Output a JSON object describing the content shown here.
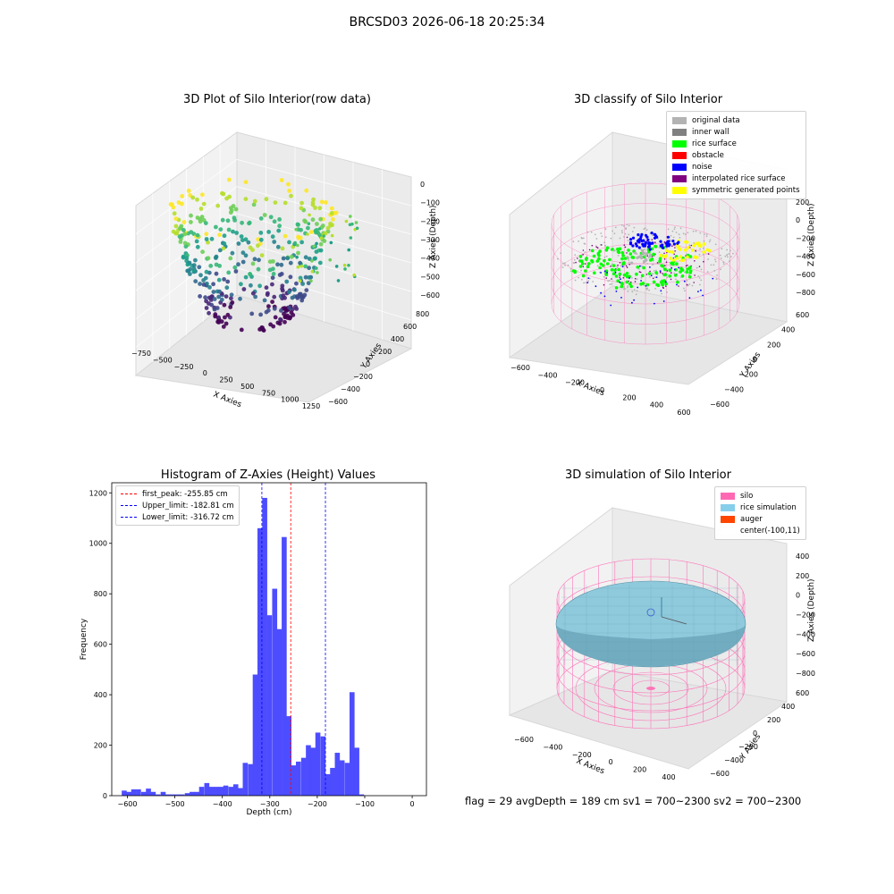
{
  "suptitle": "BRCSD03 2026-06-18 20:25:34",
  "status_line": "flag = 29  avgDepth = 189 cm  sv1 = 700~2300  sv2 = 700~2300",
  "chart_data": [
    {
      "type": "scatter3d",
      "title": "3D Plot of Silo Interior(row data)",
      "xlabel": "X Axies",
      "ylabel": "Y Axies",
      "zlabel": "Z Axies (Depth)",
      "xticks": [
        "−750",
        "−500",
        "−250",
        "0",
        "250",
        "500",
        "750",
        "1000",
        "1250"
      ],
      "yticks": [
        "−600",
        "−400",
        "−200",
        "0",
        "200",
        "400",
        "600",
        "800"
      ],
      "zticks": [
        "0",
        "−100",
        "−200",
        "−300",
        "−400",
        "−500",
        "−600"
      ],
      "colormap": "viridis",
      "colors": {
        "low": "#440154",
        "mid": "#21918c",
        "high": "#fde725"
      }
    },
    {
      "type": "scatter3d",
      "title": "3D classify of Silo Interior",
      "xlabel": "X Axies",
      "ylabel": "Y Axies",
      "zlabel": "Z Axies (Depth)",
      "xticks": [
        "−600",
        "−400",
        "−200",
        "0",
        "200",
        "400",
        "600"
      ],
      "yticks": [
        "−600",
        "−400",
        "−200",
        "0",
        "200",
        "400",
        "600"
      ],
      "zticks": [
        "200",
        "0",
        "−200",
        "−400",
        "−600",
        "−800"
      ],
      "legend": [
        {
          "label": "original data",
          "color": "#b3b3b3"
        },
        {
          "label": "inner wall",
          "color": "#808080"
        },
        {
          "label": "rice surface",
          "color": "#00ff00"
        },
        {
          "label": "obstacle",
          "color": "#ff0000"
        },
        {
          "label": "noise",
          "color": "#0000ff"
        },
        {
          "label": "interpolated rice surface",
          "color": "#800080"
        },
        {
          "label": "symmetric generated points",
          "color": "#ffff00"
        }
      ]
    },
    {
      "type": "bar",
      "title": "Histogram of Z-Axies (Height) Values",
      "xlabel": "Depth (cm)",
      "ylabel": "Frequency",
      "xlim": [
        -633,
        30
      ],
      "ylim": [
        0,
        1240
      ],
      "xticks": [
        -600,
        -500,
        -400,
        -300,
        -200,
        -100,
        0
      ],
      "yticks": [
        0,
        200,
        400,
        600,
        800,
        1000,
        1200
      ],
      "bin_width": 10.2,
      "bar_color": "#4d4dff",
      "bins": [
        {
          "x": -612,
          "v": 20
        },
        {
          "x": -602,
          "v": 15
        },
        {
          "x": -592,
          "v": 25
        },
        {
          "x": -582,
          "v": 25
        },
        {
          "x": -571,
          "v": 15
        },
        {
          "x": -561,
          "v": 28
        },
        {
          "x": -551,
          "v": 15
        },
        {
          "x": -541,
          "v": 5
        },
        {
          "x": -530,
          "v": 15
        },
        {
          "x": -520,
          "v": 5
        },
        {
          "x": -510,
          "v": 5
        },
        {
          "x": -500,
          "v": 5
        },
        {
          "x": -490,
          "v": 5
        },
        {
          "x": -479,
          "v": 10
        },
        {
          "x": -469,
          "v": 15
        },
        {
          "x": -459,
          "v": 15
        },
        {
          "x": -449,
          "v": 35
        },
        {
          "x": -438,
          "v": 50
        },
        {
          "x": -428,
          "v": 35
        },
        {
          "x": -418,
          "v": 35
        },
        {
          "x": -408,
          "v": 35
        },
        {
          "x": -398,
          "v": 40
        },
        {
          "x": -387,
          "v": 35
        },
        {
          "x": -377,
          "v": 45
        },
        {
          "x": -367,
          "v": 30
        },
        {
          "x": -357,
          "v": 130
        },
        {
          "x": -346,
          "v": 125
        },
        {
          "x": -336,
          "v": 480
        },
        {
          "x": -326,
          "v": 1060
        },
        {
          "x": -316,
          "v": 1180
        },
        {
          "x": -306,
          "v": 715
        },
        {
          "x": -295,
          "v": 820
        },
        {
          "x": -285,
          "v": 660
        },
        {
          "x": -275,
          "v": 1025
        },
        {
          "x": -265,
          "v": 315
        },
        {
          "x": -255,
          "v": 120
        },
        {
          "x": -245,
          "v": 135
        },
        {
          "x": -234,
          "v": 150
        },
        {
          "x": -224,
          "v": 200
        },
        {
          "x": -214,
          "v": 190
        },
        {
          "x": -204,
          "v": 250
        },
        {
          "x": -193,
          "v": 235
        },
        {
          "x": -183,
          "v": 85
        },
        {
          "x": -173,
          "v": 110
        },
        {
          "x": -163,
          "v": 170
        },
        {
          "x": -153,
          "v": 140
        },
        {
          "x": -142,
          "v": 130
        },
        {
          "x": -132,
          "v": 410
        },
        {
          "x": -122,
          "v": 190
        },
        {
          "x": -112,
          "v": 5
        }
      ],
      "vlines": [
        {
          "label": "first_peak: -255.85 cm",
          "x": -255.85,
          "color": "#ff0000"
        },
        {
          "label": "Upper_limit: -182.81 cm",
          "x": -182.81,
          "color": "#0000ff"
        },
        {
          "label": "Lower_limit: -316.72 cm",
          "x": -316.72,
          "color": "#0000ff"
        }
      ]
    },
    {
      "type": "surface3d",
      "title": "3D simulation of Silo Interior",
      "xlabel": "X Axies",
      "ylabel": "Y Axies",
      "zlabel": "Z Axies (Depth)",
      "xticks": [
        "−600",
        "−400",
        "−200",
        "0",
        "200",
        "400"
      ],
      "yticks": [
        "−600",
        "−400",
        "−200",
        "0",
        "200",
        "400",
        "600"
      ],
      "zticks": [
        "400",
        "200",
        "0",
        "−200",
        "−400",
        "−600",
        "−800"
      ],
      "legend": [
        {
          "label": "silo",
          "color": "#ff69b4"
        },
        {
          "label": "rice simulation",
          "color": "#87ceeb"
        },
        {
          "label": "auger",
          "color": "#ff4500"
        },
        {
          "label": "center(-100,11)",
          "color": "#ffffff"
        }
      ]
    }
  ]
}
